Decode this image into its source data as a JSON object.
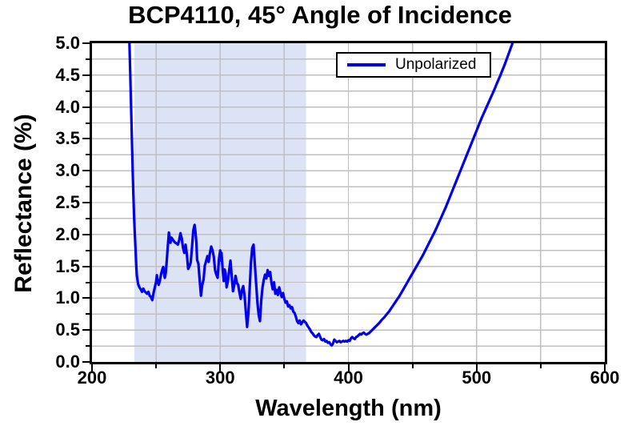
{
  "title": "BCP4110, 45° Angle of Incidence",
  "legend": {
    "label": "Unpolarized"
  },
  "colors": {
    "curve": "#0000ee",
    "grid": "#bfbfbf",
    "shaded_band": "#dce3f4",
    "frame": "#000000",
    "background": "#ffffff"
  },
  "chart_data": {
    "type": "line",
    "title": "BCP4110, 45° Angle of Incidence",
    "xlabel": "Wavelength (nm)",
    "ylabel": "Reflectance (%)",
    "xlim": [
      200,
      600
    ],
    "ylim": [
      0.0,
      5.0
    ],
    "x_major_ticks": [
      200,
      300,
      400,
      500,
      600
    ],
    "x_major_tick_labels": [
      "200",
      "300",
      "400",
      "500",
      "600"
    ],
    "x_minor_ticks": [
      250,
      350,
      450,
      550
    ],
    "y_major_ticks": [
      0.0,
      0.5,
      1.0,
      1.5,
      2.0,
      2.5,
      3.0,
      3.5,
      4.0,
      4.5,
      5.0
    ],
    "y_major_tick_labels": [
      "0.0",
      "0.5",
      "1.0",
      "1.5",
      "2.0",
      "2.5",
      "3.0",
      "3.5",
      "4.0",
      "4.5",
      "5.0"
    ],
    "y_minor_tick_step": 0.25,
    "grid": {
      "vertical_interval_nm": 50,
      "horizontal_interval_pct": 0.25,
      "on": true
    },
    "shaded_band": {
      "x_start": 233,
      "x_end": 367
    },
    "legend": {
      "entries": [
        "Unpolarized"
      ],
      "position": "top-center-right"
    },
    "series": [
      {
        "name": "Unpolarized",
        "points": [
          [
            229.2,
            5.0
          ],
          [
            229.8,
            4.55
          ],
          [
            230.3,
            4.15
          ],
          [
            230.8,
            3.75
          ],
          [
            231.3,
            3.35
          ],
          [
            231.8,
            2.95
          ],
          [
            232.3,
            2.6
          ],
          [
            232.8,
            2.3
          ],
          [
            233.3,
            2.05
          ],
          [
            234,
            1.75
          ],
          [
            234.5,
            1.52
          ],
          [
            235,
            1.35
          ],
          [
            236,
            1.22
          ],
          [
            237,
            1.17
          ],
          [
            238,
            1.14
          ],
          [
            239,
            1.1
          ],
          [
            240,
            1.15
          ],
          [
            241,
            1.11
          ],
          [
            242,
            1.09
          ],
          [
            243,
            1.07
          ],
          [
            244,
            1.1
          ],
          [
            245,
            1.04
          ],
          [
            246,
            1.02
          ],
          [
            247,
            0.97
          ],
          [
            248,
            1.08
          ],
          [
            249,
            1.17
          ],
          [
            250,
            1.26
          ],
          [
            250.6,
            1.36
          ],
          [
            251.2,
            1.27
          ],
          [
            252,
            1.21
          ],
          [
            253,
            1.28
          ],
          [
            254,
            1.39
          ],
          [
            255,
            1.46
          ],
          [
            255.6,
            1.49
          ],
          [
            256.2,
            1.39
          ],
          [
            256.8,
            1.32
          ],
          [
            257.5,
            1.39
          ],
          [
            258.2,
            1.56
          ],
          [
            259,
            1.78
          ],
          [
            260,
            2.03
          ],
          [
            260.6,
            1.94
          ],
          [
            261.2,
            1.87
          ],
          [
            262,
            1.95
          ],
          [
            263,
            1.92
          ],
          [
            264,
            1.89
          ],
          [
            265,
            1.87
          ],
          [
            266,
            1.86
          ],
          [
            267,
            1.84
          ],
          [
            268,
            1.91
          ],
          [
            269,
            2.02
          ],
          [
            270,
            1.94
          ],
          [
            271,
            1.79
          ],
          [
            272,
            1.71
          ],
          [
            273,
            1.84
          ],
          [
            274,
            1.69
          ],
          [
            275,
            1.46
          ],
          [
            276,
            1.5
          ],
          [
            277,
            1.56
          ],
          [
            278,
            1.8
          ],
          [
            279,
            2.06
          ],
          [
            280,
            2.15
          ],
          [
            280.7,
            2.04
          ],
          [
            281.4,
            1.88
          ],
          [
            282,
            1.6
          ],
          [
            283,
            1.54
          ],
          [
            284,
            1.28
          ],
          [
            285,
            1.04
          ],
          [
            286,
            1.21
          ],
          [
            287,
            1.29
          ],
          [
            288,
            1.51
          ],
          [
            289,
            1.58
          ],
          [
            290,
            1.66
          ],
          [
            291,
            1.57
          ],
          [
            292,
            1.71
          ],
          [
            293,
            1.81
          ],
          [
            294,
            1.75
          ],
          [
            295,
            1.65
          ],
          [
            296,
            1.44
          ],
          [
            297,
            1.37
          ],
          [
            298,
            1.32
          ],
          [
            299,
            1.61
          ],
          [
            300,
            1.75
          ],
          [
            300.5,
            1.59
          ],
          [
            301,
            1.71
          ],
          [
            301.6,
            1.54
          ],
          [
            302.2,
            1.39
          ],
          [
            302.8,
            1.27
          ],
          [
            303.5,
            1.45
          ],
          [
            304.2,
            1.39
          ],
          [
            305,
            1.17
          ],
          [
            306,
            1.27
          ],
          [
            307,
            1.44
          ],
          [
            308,
            1.59
          ],
          [
            309,
            1.34
          ],
          [
            310,
            1.11
          ],
          [
            311,
            1.21
          ],
          [
            312,
            1.35
          ],
          [
            313,
            1.24
          ],
          [
            314,
            1.21
          ],
          [
            315,
            1.09
          ],
          [
            316,
            0.99
          ],
          [
            317,
            1.13
          ],
          [
            318,
            1.19
          ],
          [
            319,
            1.04
          ],
          [
            320,
            0.79
          ],
          [
            321,
            0.55
          ],
          [
            322,
            0.76
          ],
          [
            323,
            1.16
          ],
          [
            324,
            1.56
          ],
          [
            325,
            1.79
          ],
          [
            326,
            1.84
          ],
          [
            327,
            1.54
          ],
          [
            328,
            1.24
          ],
          [
            329,
            0.94
          ],
          [
            330,
            0.74
          ],
          [
            331,
            0.64
          ],
          [
            332,
            0.96
          ],
          [
            333,
            1.17
          ],
          [
            334,
            1.29
          ],
          [
            335,
            1.37
          ],
          [
            336,
            1.31
          ],
          [
            337,
            1.44
          ],
          [
            338,
            1.35
          ],
          [
            339,
            1.41
          ],
          [
            340,
            1.24
          ],
          [
            341,
            1.14
          ],
          [
            342,
            1.25
          ],
          [
            343,
            1.07
          ],
          [
            344,
            1.13
          ],
          [
            345,
            1.05
          ],
          [
            346,
            1.17
          ],
          [
            347,
            1.09
          ],
          [
            348,
            1.02
          ],
          [
            349,
            1.08
          ],
          [
            350,
            0.99
          ],
          [
            351,
            0.93
          ],
          [
            352,
            0.95
          ],
          [
            353,
            0.87
          ],
          [
            354,
            0.89
          ],
          [
            355,
            0.84
          ],
          [
            356,
            0.86
          ],
          [
            357,
            0.79
          ],
          [
            358,
            0.77
          ],
          [
            359,
            0.71
          ],
          [
            360,
            0.64
          ],
          [
            361,
            0.61
          ],
          [
            362,
            0.65
          ],
          [
            363,
            0.59
          ],
          [
            364,
            0.62
          ],
          [
            365,
            0.65
          ],
          [
            366,
            0.63
          ],
          [
            367,
            0.61
          ],
          [
            368,
            0.57
          ],
          [
            369,
            0.54
          ],
          [
            370,
            0.51
          ],
          [
            371,
            0.47
          ],
          [
            372,
            0.45
          ],
          [
            373,
            0.42
          ],
          [
            374,
            0.4
          ],
          [
            375,
            0.39
          ],
          [
            376,
            0.42
          ],
          [
            377,
            0.44
          ],
          [
            378,
            0.39
          ],
          [
            379,
            0.35
          ],
          [
            380,
            0.34
          ],
          [
            381,
            0.36
          ],
          [
            382,
            0.32
          ],
          [
            383,
            0.33
          ],
          [
            384,
            0.3
          ],
          [
            385,
            0.31
          ],
          [
            386,
            0.28
          ],
          [
            387,
            0.26
          ],
          [
            388,
            0.29
          ],
          [
            389,
            0.35
          ],
          [
            390,
            0.33
          ],
          [
            391,
            0.31
          ],
          [
            392,
            0.32
          ],
          [
            393,
            0.33
          ],
          [
            394,
            0.31
          ],
          [
            395,
            0.32
          ],
          [
            396,
            0.33
          ],
          [
            397,
            0.32
          ],
          [
            398,
            0.33
          ],
          [
            399,
            0.32
          ],
          [
            400,
            0.34
          ],
          [
            401,
            0.33
          ],
          [
            402,
            0.37
          ],
          [
            403,
            0.39
          ],
          [
            404,
            0.37
          ],
          [
            405,
            0.36
          ],
          [
            406,
            0.39
          ],
          [
            407,
            0.4
          ],
          [
            408,
            0.42
          ],
          [
            409,
            0.44
          ],
          [
            410,
            0.43
          ],
          [
            411,
            0.45
          ],
          [
            412,
            0.46
          ],
          [
            413,
            0.44
          ],
          [
            414,
            0.43
          ],
          [
            415,
            0.44
          ],
          [
            416,
            0.45
          ],
          [
            417,
            0.47
          ],
          [
            418,
            0.49
          ],
          [
            419,
            0.51
          ],
          [
            420,
            0.53
          ],
          [
            422,
            0.57
          ],
          [
            424,
            0.61
          ],
          [
            426,
            0.66
          ],
          [
            428,
            0.7
          ],
          [
            430,
            0.75
          ],
          [
            432,
            0.8
          ],
          [
            434,
            0.86
          ],
          [
            436,
            0.92
          ],
          [
            438,
            0.98
          ],
          [
            440,
            1.04
          ],
          [
            442,
            1.11
          ],
          [
            444,
            1.18
          ],
          [
            446,
            1.25
          ],
          [
            448,
            1.32
          ],
          [
            450,
            1.39
          ],
          [
            452,
            1.46
          ],
          [
            454,
            1.53
          ],
          [
            456,
            1.6
          ],
          [
            458,
            1.67
          ],
          [
            460,
            1.75
          ],
          [
            462,
            1.83
          ],
          [
            464,
            1.91
          ],
          [
            466,
            1.99
          ],
          [
            468,
            2.07
          ],
          [
            470,
            2.16
          ],
          [
            472,
            2.25
          ],
          [
            474,
            2.34
          ],
          [
            476,
            2.43
          ],
          [
            478,
            2.53
          ],
          [
            480,
            2.63
          ],
          [
            482,
            2.73
          ],
          [
            484,
            2.83
          ],
          [
            486,
            2.93
          ],
          [
            488,
            3.03
          ],
          [
            490,
            3.13
          ],
          [
            492,
            3.23
          ],
          [
            494,
            3.33
          ],
          [
            496,
            3.43
          ],
          [
            498,
            3.53
          ],
          [
            500,
            3.63
          ],
          [
            502,
            3.73
          ],
          [
            504,
            3.83
          ],
          [
            506,
            3.92
          ],
          [
            508,
            4.01
          ],
          [
            510,
            4.1
          ],
          [
            512,
            4.19
          ],
          [
            514,
            4.28
          ],
          [
            516,
            4.38
          ],
          [
            518,
            4.47
          ],
          [
            520,
            4.57
          ],
          [
            522,
            4.67
          ],
          [
            524,
            4.78
          ],
          [
            526,
            4.89
          ],
          [
            528,
            5.0
          ]
        ]
      }
    ]
  }
}
